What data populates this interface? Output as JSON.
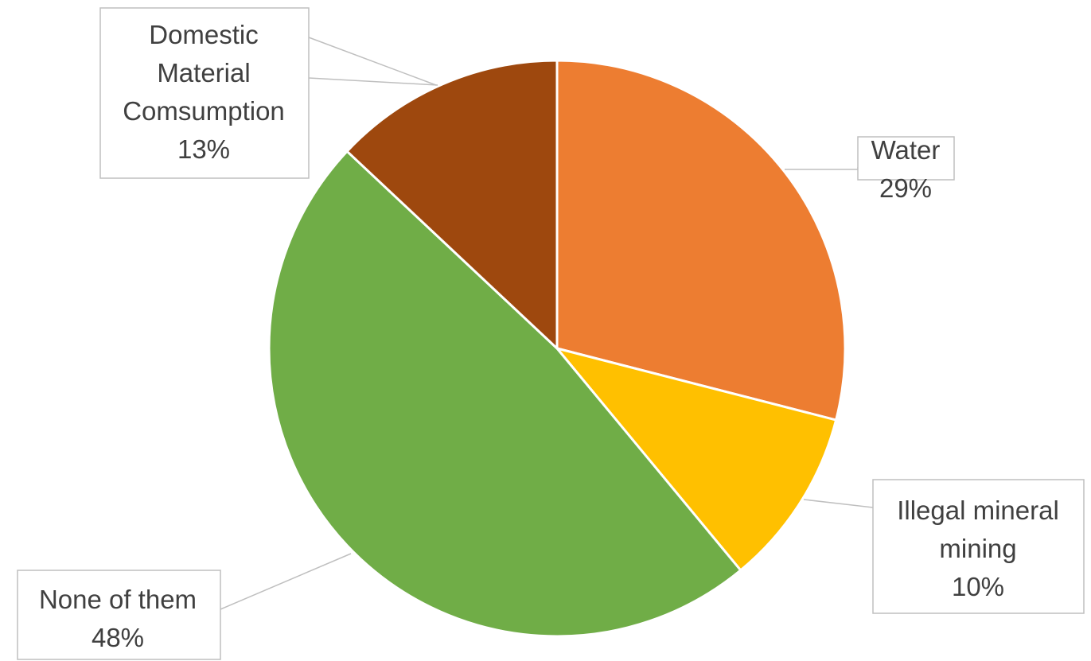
{
  "chart_data": {
    "type": "pie",
    "slices": [
      {
        "name": "Water",
        "value": 29,
        "label": "29%",
        "color": "#ED7D31"
      },
      {
        "name": "Illegal mineral mining",
        "value": 10,
        "label": "10%",
        "color": "#FFC000"
      },
      {
        "name": "None of them",
        "value": 48,
        "label": "48%",
        "color": "#70AD47"
      },
      {
        "name": "Domestic Material Comsumption",
        "value": 13,
        "label": "13%",
        "color": "#9E480E"
      }
    ]
  }
}
